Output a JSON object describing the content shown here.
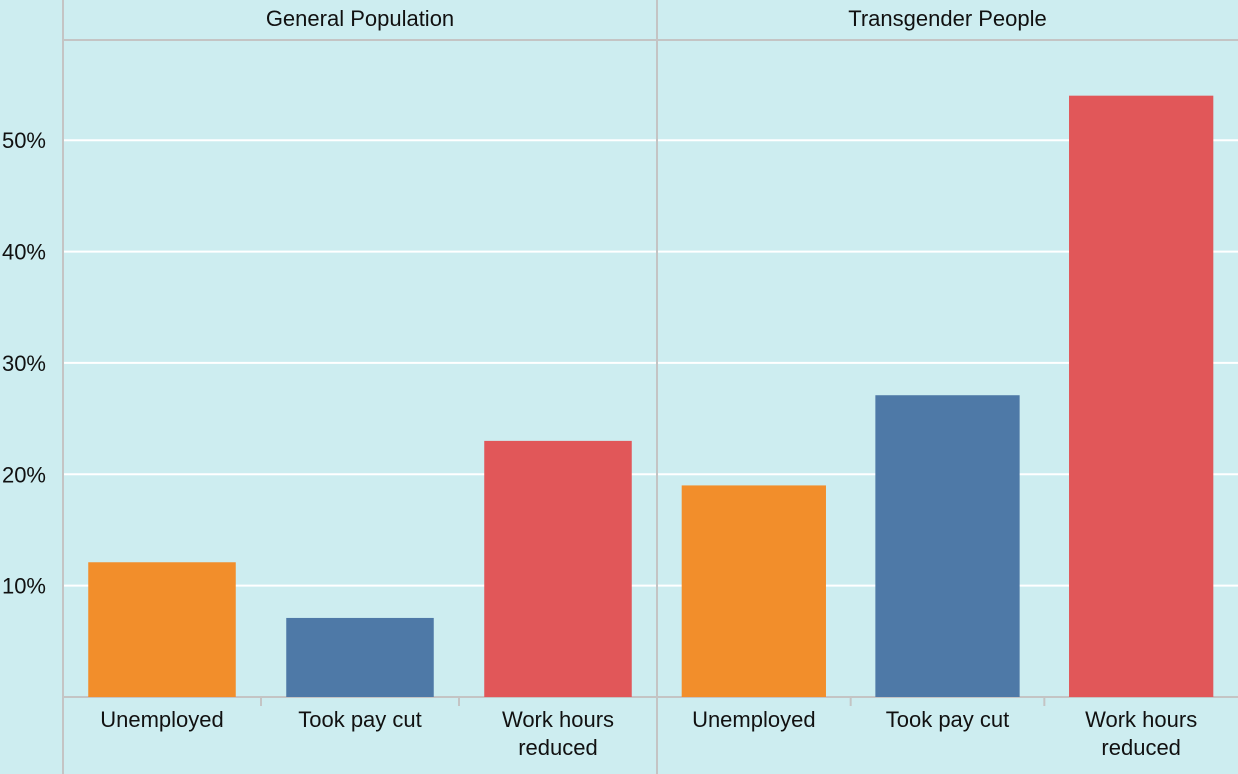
{
  "chart_data": {
    "type": "bar",
    "panels": [
      {
        "title": "General Population",
        "categories": [
          "Unemployed",
          "Took pay cut",
          "Work hours reduced"
        ],
        "values": [
          12.1,
          7.1,
          23.0
        ]
      },
      {
        "title": "Transgender People",
        "categories": [
          "Unemployed",
          "Took pay cut",
          "Work hours reduced"
        ],
        "values": [
          19.0,
          27.1,
          54.0
        ]
      }
    ],
    "category_labels": [
      [
        "Unemployed"
      ],
      [
        "Took pay cut"
      ],
      [
        "Work hours",
        "reduced"
      ]
    ],
    "colors": [
      "#f28e2b",
      "#4e79a7",
      "#e15759"
    ],
    "yticks": [
      "10%",
      "20%",
      "30%",
      "40%",
      "50%"
    ],
    "ytick_values": [
      10,
      20,
      30,
      40,
      50
    ],
    "ylim": [
      0,
      59
    ],
    "xlabel": "",
    "ylabel": "",
    "grid": true,
    "background": "#cdedf0",
    "grid_color": "#ffffff",
    "frame_color": "#c4c4c4"
  }
}
